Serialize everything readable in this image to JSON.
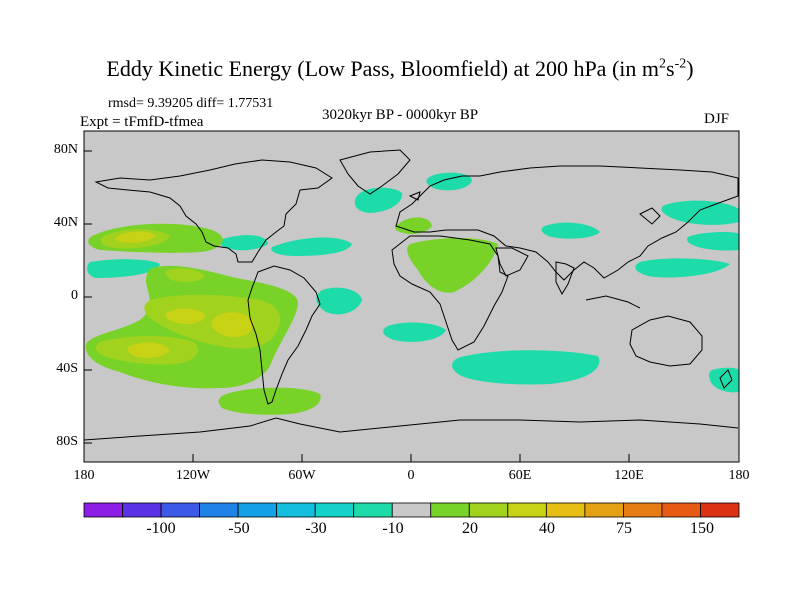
{
  "title": "Eddy Kinetic Energy (Low Pass, Bloomfield) at 200 hPa (in m",
  "title_units_sup1": "2",
  "title_units_mid": "s",
  "title_units_sup2": "-2",
  "title_units_end": ")",
  "stats": "rmsd= 9.39205 diff= 1.77531",
  "period": "3020kyr BP - 0000kyr BP",
  "experiment": "Expt = tFmfD-tfmea",
  "season": "DJF",
  "y_ticks": [
    "80N",
    "40N",
    "0",
    "40S",
    "80S"
  ],
  "x_ticks": [
    "180",
    "120W",
    "60W",
    "0",
    "60E",
    "120E",
    "180"
  ],
  "colorbar": {
    "labels": [
      "-100",
      "-50",
      "-30",
      "-10",
      "20",
      "40",
      "75",
      "150"
    ],
    "colors": [
      "#8c1ee6",
      "#5a32e6",
      "#3c5ae6",
      "#1e82e6",
      "#14a0e6",
      "#14bede",
      "#14d2c8",
      "#1edcaa",
      "#c8c8c8",
      "#78d228",
      "#a0d21e",
      "#c8d214",
      "#e6be14",
      "#e6a014",
      "#e67d14",
      "#e65a14",
      "#dc3214"
    ]
  },
  "colors": {
    "land_bg": "#c8c8c8",
    "cyan": "#1edcaa",
    "green": "#78d228",
    "lightgreen": "#a0d21e",
    "yellowgreen": "#c8d214"
  }
}
